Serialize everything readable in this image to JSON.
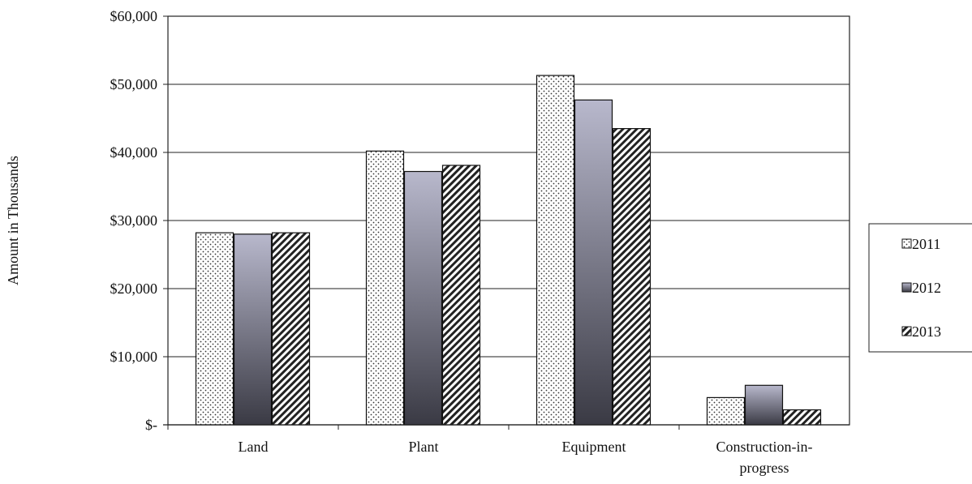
{
  "chart_data": {
    "type": "bar",
    "title": "",
    "xlabel": "",
    "ylabel": "Amount in Thousands",
    "categories": [
      "Land",
      "Plant",
      "Equipment",
      "Construction-in-progress"
    ],
    "category_display": [
      [
        "Land"
      ],
      [
        "Plant"
      ],
      [
        "Equipment"
      ],
      [
        "Construction-in-",
        "progress"
      ]
    ],
    "series": [
      {
        "name": "2011",
        "values": [
          28200,
          40200,
          51300,
          4000
        ],
        "pattern": "dots"
      },
      {
        "name": "2012",
        "values": [
          28000,
          37200,
          47700,
          5800
        ],
        "pattern": "gradient"
      },
      {
        "name": "2013",
        "values": [
          28200,
          38100,
          43500,
          2200
        ],
        "pattern": "diagonal-hatch"
      }
    ],
    "ylim": [
      0,
      60000
    ],
    "yticks": [
      0,
      10000,
      20000,
      30000,
      40000,
      50000,
      60000
    ],
    "ytick_labels": [
      "$-",
      "$10,000",
      "$20,000",
      "$30,000",
      "$40,000",
      "$50,000",
      "$60,000"
    ],
    "grid": true,
    "legend_position": "right",
    "colors": {
      "gradient_top": "#b8b8cc",
      "gradient_bottom": "#3a3a44",
      "outline": "#111111"
    }
  }
}
